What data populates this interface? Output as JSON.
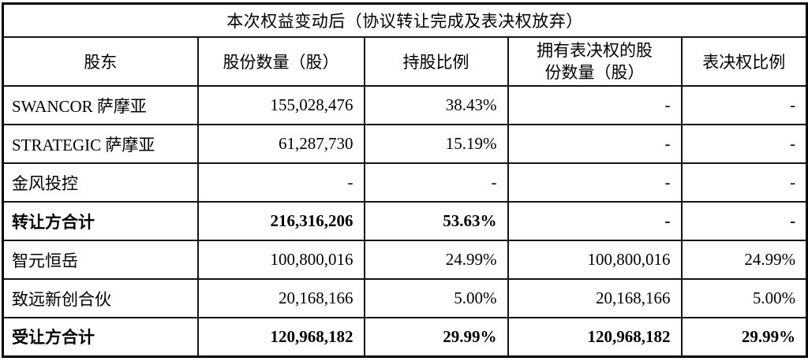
{
  "table": {
    "title": "本次权益变动后（协议转让完成及表决权放弃）",
    "columns": [
      "股东",
      "股份数量（股）",
      "持股比例",
      "拥有表决权的股份数量（股）",
      "表决权比例"
    ],
    "rows": [
      {
        "shareholder": "SWANCOR 萨摩亚",
        "shares": "155,028,476",
        "holding_ratio": "38.43%",
        "voting_shares": "-",
        "voting_ratio": "-",
        "bold": false
      },
      {
        "shareholder": "STRATEGIC 萨摩亚",
        "shares": "61,287,730",
        "holding_ratio": "15.19%",
        "voting_shares": "-",
        "voting_ratio": "-",
        "bold": false
      },
      {
        "shareholder": "金风投控",
        "shares": "-",
        "holding_ratio": "-",
        "voting_shares": "-",
        "voting_ratio": "-",
        "bold": false
      },
      {
        "shareholder": "转让方合计",
        "shares": "216,316,206",
        "holding_ratio": "53.63%",
        "voting_shares": "-",
        "voting_ratio": "-",
        "bold": true
      },
      {
        "shareholder": "智元恒岳",
        "shares": "100,800,016",
        "holding_ratio": "24.99%",
        "voting_shares": "100,800,016",
        "voting_ratio": "24.99%",
        "bold": false
      },
      {
        "shareholder": "致远新创合伙",
        "shares": "20,168,166",
        "holding_ratio": "5.00%",
        "voting_shares": "20,168,166",
        "voting_ratio": "5.00%",
        "bold": false
      },
      {
        "shareholder": "受让方合计",
        "shares": "120,968,182",
        "holding_ratio": "29.99%",
        "voting_shares": "120,968,182",
        "voting_ratio": "29.99%",
        "bold": true
      }
    ],
    "colors": {
      "border": "#000000",
      "text": "#000000",
      "background": "#ffffff"
    }
  }
}
